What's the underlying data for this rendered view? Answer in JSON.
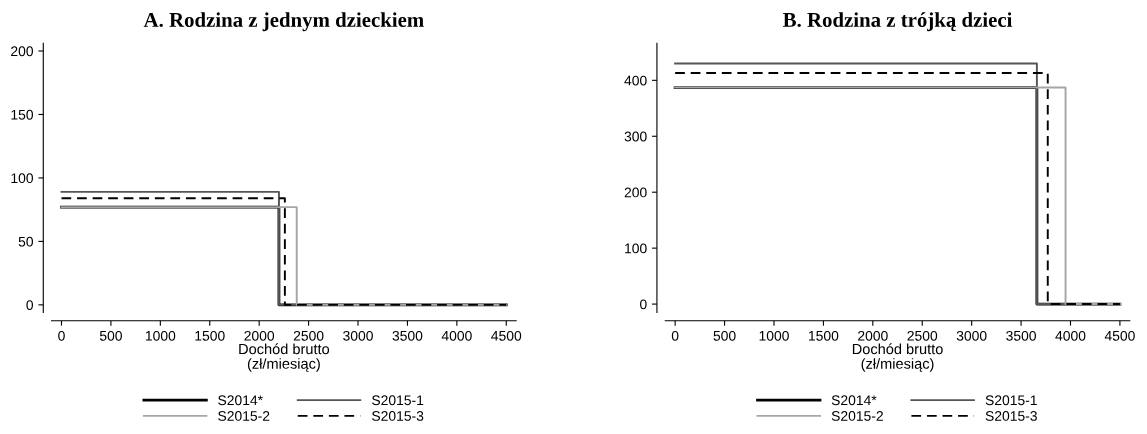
{
  "chart_data": [
    {
      "type": "step",
      "title": "A. Rodzina z jednym dzieckiem",
      "xlabel": "Dochód brutto\n(zł/miesiąc)",
      "xlim": [
        -100,
        4600
      ],
      "xticks": [
        0,
        500,
        1000,
        1500,
        2000,
        2500,
        3000,
        3500,
        4000,
        4500
      ],
      "ylim": [
        -6,
        206
      ],
      "yticks": [
        0,
        50,
        100,
        150,
        200
      ],
      "grid": false,
      "legend": "bottom",
      "series": [
        {
          "name": "S2014*",
          "color": "#000000",
          "line_style": "solid",
          "x": [
            0,
            2200,
            4500
          ],
          "values": [
            77,
            0,
            0
          ]
        },
        {
          "name": "S2015-1",
          "color": "#555555",
          "line_style": "solid",
          "x": [
            0,
            2200,
            4500
          ],
          "values": [
            89,
            0,
            0
          ]
        },
        {
          "name": "S2015-2",
          "color": "#a6a6a6",
          "line_style": "solid",
          "x": [
            0,
            2380,
            4500
          ],
          "values": [
            77,
            0,
            0
          ]
        },
        {
          "name": "S2015-3",
          "color": "#000000",
          "line_style": "dashed",
          "x": [
            0,
            2260,
            4500
          ],
          "values": [
            84,
            0,
            0
          ]
        }
      ]
    },
    {
      "type": "step",
      "title": "B. Rodzina z trójką dzieci",
      "xlabel": "Dochód brutto\n(zł/miesiąc)",
      "xlim": [
        -100,
        4600
      ],
      "xticks": [
        0,
        500,
        1000,
        1500,
        2000,
        2500,
        3000,
        3500,
        4000,
        4500
      ],
      "ylim": [
        -15,
        466
      ],
      "yticks": [
        0,
        100,
        200,
        300,
        400
      ],
      "grid": false,
      "legend": "bottom",
      "series": [
        {
          "name": "S2014*",
          "color": "#000000",
          "line_style": "solid",
          "x": [
            0,
            3660,
            4500
          ],
          "values": [
            387,
            0,
            0
          ]
        },
        {
          "name": "S2015-1",
          "color": "#555555",
          "line_style": "solid",
          "x": [
            0,
            3660,
            4500
          ],
          "values": [
            430,
            0,
            0
          ]
        },
        {
          "name": "S2015-2",
          "color": "#a6a6a6",
          "line_style": "solid",
          "x": [
            0,
            3950,
            4500
          ],
          "values": [
            387,
            0,
            0
          ]
        },
        {
          "name": "S2015-3",
          "color": "#000000",
          "line_style": "dashed",
          "x": [
            0,
            3770,
            4500
          ],
          "values": [
            413,
            0,
            0
          ]
        }
      ]
    }
  ]
}
